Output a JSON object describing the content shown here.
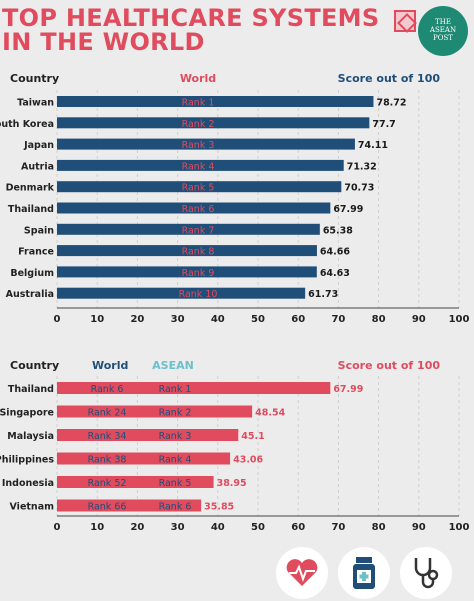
{
  "header": {
    "title_line1": "TOP HEALTHCARE SYSTEMS",
    "title_line2": "IN THE WORLD",
    "badge_text_1": "THE",
    "badge_text_2": "ASEAN",
    "badge_text_3": "POST"
  },
  "chart_data": [
    {
      "type": "bar",
      "orientation": "horizontal",
      "column_headers": {
        "country": "Country",
        "world": "World",
        "score": "Score out of 100"
      },
      "categories": [
        "Taiwan",
        "South Korea",
        "Japan",
        "Autria",
        "Denmark",
        "Thailand",
        "Spain",
        "France",
        "Belgium",
        "Australia"
      ],
      "world_rank": [
        "Rank 1",
        "Rank 2",
        "Rank 3",
        "Rank 4",
        "Rank 5",
        "Rank 6",
        "Rank 7",
        "Rank 8",
        "Rank 9",
        "Rank 10"
      ],
      "values": [
        78.72,
        77.7,
        74.11,
        71.32,
        70.73,
        67.99,
        65.38,
        64.66,
        64.63,
        61.73
      ],
      "value_labels": [
        "78.72",
        "77.7",
        "74.11",
        "71.32",
        "70.73",
        "67.99",
        "65.38",
        "64.66",
        "64.63",
        "61.73"
      ],
      "xlim": [
        0,
        100
      ],
      "ticks": [
        "0",
        "10",
        "20",
        "30",
        "40",
        "50",
        "60",
        "70",
        "80",
        "90",
        "100"
      ],
      "bar_color": "#1f4e79",
      "grid": true
    },
    {
      "type": "bar",
      "orientation": "horizontal",
      "column_headers": {
        "country": "Country",
        "world": "World",
        "asean": "ASEAN",
        "score": "Score out of 100"
      },
      "categories": [
        "Thailand",
        "Singapore",
        "Malaysia",
        "Philippines",
        "Indonesia",
        "Vietnam"
      ],
      "world_rank": [
        "Rank 6",
        "Rank 24",
        "Rank 34",
        "Rank 38",
        "Rank 52",
        "Rank 66"
      ],
      "asean_rank": [
        "Rank 1",
        "Rank 2",
        "Rank 3",
        "Rank 4",
        "Rank 5",
        "Rank 6"
      ],
      "values": [
        67.99,
        48.54,
        45.1,
        43.06,
        38.95,
        35.85
      ],
      "value_labels": [
        "67.99",
        "48.54",
        "45.1",
        "43.06",
        "38.95",
        "35.85"
      ],
      "xlim": [
        0,
        100
      ],
      "ticks": [
        "0",
        "10",
        "20",
        "30",
        "40",
        "50",
        "60",
        "70",
        "80",
        "90",
        "100"
      ],
      "bar_color": "#e04c5e",
      "grid": true
    }
  ],
  "colors": {
    "red": "#e04c5e",
    "navy": "#1f4e79",
    "teal": "#6cc0c9"
  },
  "icons": [
    "heart-rate-icon",
    "medicine-bottle-icon",
    "stethoscope-icon"
  ]
}
